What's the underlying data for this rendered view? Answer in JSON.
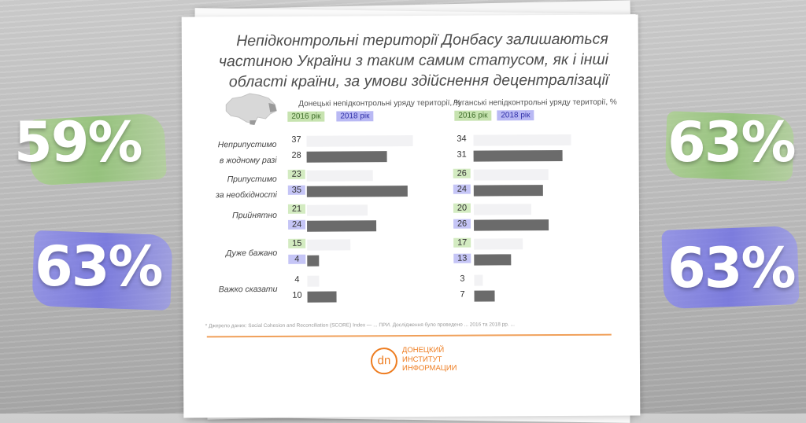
{
  "stats": {
    "left_2016": "59%",
    "left_2018": "63%",
    "right_2016": "63%",
    "right_2018": "63%"
  },
  "chart_data": {
    "type": "bar",
    "title_lines": [
      "Непідконтрольні території Донбасу залишаються",
      "частиною України з таким самим статусом, як і інші",
      "області країни, за умови здійснення децентралізації"
    ],
    "legend": [
      "2016 рік",
      "2018 рік"
    ],
    "categories": [
      [
        "Неприпустимо",
        "в жодному разі"
      ],
      [
        "Припустимо",
        "за необхідності"
      ],
      [
        "Прийнятно"
      ],
      [
        "Дуже бажано"
      ],
      [
        "Важко сказати"
      ]
    ],
    "highlight": [
      false,
      true,
      true,
      true,
      false
    ],
    "xlim": [
      0,
      40
    ],
    "panels": [
      {
        "title": "Донецькі непідконтрольні уряду території, %",
        "series": [
          {
            "name": "2016 рік",
            "values": [
              37,
              23,
              21,
              15,
              4
            ]
          },
          {
            "name": "2018 рік",
            "values": [
              28,
              35,
              24,
              4,
              10
            ]
          }
        ]
      },
      {
        "title": "Луганські непідконтрольні уряду території, %",
        "series": [
          {
            "name": "2016 рік",
            "values": [
              34,
              26,
              20,
              17,
              3
            ]
          },
          {
            "name": "2018 рік",
            "values": [
              31,
              24,
              26,
              13,
              7
            ]
          }
        ]
      }
    ]
  },
  "footer": {
    "source": "* Джерело даних: Social Cohesion and Reconciliation (SCORE) Index — ...  ПРИ. Дослідження було проведено ... 2016 та 2018 рр. ...",
    "logo_mark": "dn",
    "logo_lines": [
      "ДОНЕЦКИЙ",
      "ИНСТИТУТ",
      "ИНФОРМАЦИИ"
    ]
  }
}
